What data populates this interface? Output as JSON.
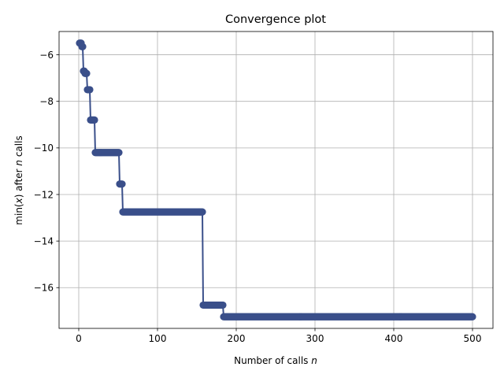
{
  "chart_data": {
    "type": "line",
    "title": "Convergence plot",
    "xlabel_prefix": "Number of calls ",
    "xlabel_var": "n",
    "ylabel_prefix": "min(",
    "ylabel_x": "x",
    "ylabel_mid": ") after ",
    "ylabel_n": "n",
    "ylabel_suffix": " calls",
    "xlim": [
      -25,
      526
    ],
    "ylim": [
      -17.75,
      -5.0
    ],
    "xticks": [
      0,
      100,
      200,
      300,
      400,
      500
    ],
    "xtick_labels": [
      "0",
      "100",
      "200",
      "300",
      "400",
      "500"
    ],
    "yticks": [
      -6,
      -8,
      -10,
      -12,
      -14,
      -16
    ],
    "ytick_labels": [
      "−6",
      "−8",
      "−10",
      "−12",
      "−14",
      "−16"
    ],
    "grid": true,
    "series_color": "#3a4f8a",
    "series": [
      {
        "steps": [
          {
            "x_start": 1,
            "x_end": 3,
            "y": -5.5
          },
          {
            "x_start": 4,
            "x_end": 5,
            "y": -5.65
          },
          {
            "x_start": 6,
            "x_end": 7,
            "y": -6.7
          },
          {
            "x_start": 8,
            "x_end": 10,
            "y": -6.8
          },
          {
            "x_start": 11,
            "x_end": 14,
            "y": -7.5
          },
          {
            "x_start": 15,
            "x_end": 20,
            "y": -8.8
          },
          {
            "x_start": 21,
            "x_end": 51,
            "y": -10.2
          },
          {
            "x_start": 52,
            "x_end": 55,
            "y": -11.55
          },
          {
            "x_start": 56,
            "x_end": 157,
            "y": -12.75
          },
          {
            "x_start": 158,
            "x_end": 183,
            "y": -16.75
          },
          {
            "x_start": 184,
            "x_end": 500,
            "y": -17.25
          }
        ]
      }
    ]
  }
}
